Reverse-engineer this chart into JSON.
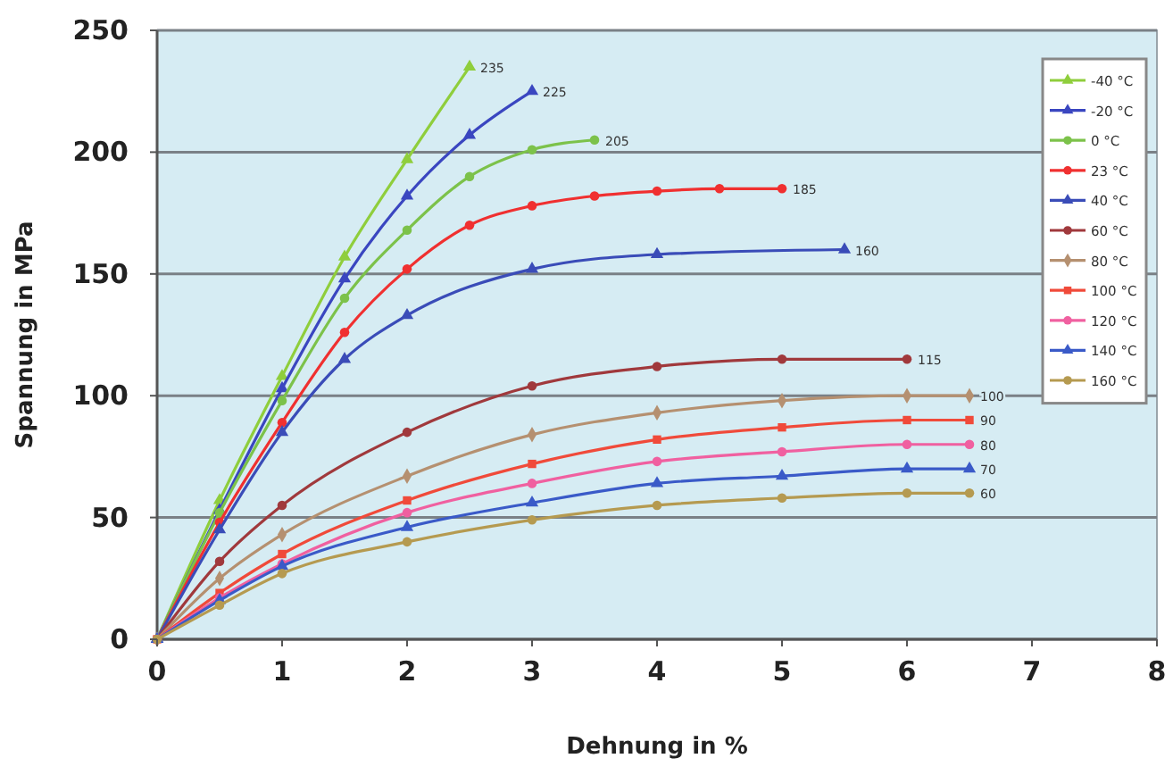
{
  "chart_data": {
    "type": "line",
    "xlabel": "Dehnung in %",
    "ylabel": "Spannung in MPa",
    "xlim": [
      0,
      8
    ],
    "ylim": [
      0,
      250
    ],
    "xticks": [
      0,
      1,
      2,
      3,
      4,
      5,
      6,
      7,
      8
    ],
    "yticks": [
      0,
      50,
      100,
      150,
      200,
      250
    ],
    "grid": "y",
    "legend": "top right",
    "marker": "circle",
    "line_style": "solid",
    "series": [
      {
        "name": "-40 °C",
        "color": "#8fce3c",
        "marker": "triangle",
        "x": [
          0,
          0.5,
          1,
          1.5,
          2,
          2.5
        ],
        "values": [
          0,
          57,
          108,
          157,
          197,
          235
        ]
      },
      {
        "name": "-20 °C",
        "color": "#3a46c0",
        "marker": "triangle",
        "x": [
          0,
          0.5,
          1,
          1.5,
          2,
          2.5,
          3
        ],
        "values": [
          0,
          53,
          103,
          148,
          182,
          207,
          225
        ]
      },
      {
        "name": "0 °C",
        "color": "#7cc24a",
        "x": [
          0,
          0.5,
          1,
          1.5,
          2,
          2.5,
          3,
          3.5
        ],
        "values": [
          0,
          52,
          98,
          140,
          168,
          190,
          201,
          205
        ]
      },
      {
        "name": "23 °C",
        "color": "#f03030",
        "x": [
          0,
          0.5,
          1,
          1.5,
          2,
          2.5,
          3,
          3.5,
          4,
          4.5,
          5
        ],
        "values": [
          0,
          48,
          89,
          126,
          152,
          170,
          178,
          182,
          184,
          185,
          185
        ]
      },
      {
        "name": "40 °C",
        "color": "#3a4cb8",
        "marker": "triangle",
        "x": [
          0,
          0.5,
          1,
          1.5,
          2,
          3,
          4,
          5.5
        ],
        "values": [
          0,
          45,
          85,
          115,
          133,
          152,
          158,
          160
        ]
      },
      {
        "name": "60 °C",
        "color": "#a0393c",
        "x": [
          0,
          0.5,
          1,
          2,
          3,
          4,
          5,
          6
        ],
        "values": [
          0,
          32,
          55,
          85,
          104,
          112,
          115,
          115
        ]
      },
      {
        "name": "80 °C",
        "color": "#b59070",
        "marker": "diamond",
        "x": [
          0,
          0.5,
          1,
          2,
          3,
          4,
          5,
          6,
          6.5
        ],
        "values": [
          0,
          25,
          43,
          67,
          84,
          93,
          98,
          100,
          100
        ]
      },
      {
        "name": "100 °C",
        "color": "#f04a3a",
        "marker": "square",
        "x": [
          0,
          0.5,
          1,
          2,
          3,
          4,
          5,
          6,
          6.5
        ],
        "values": [
          0,
          19,
          35,
          57,
          72,
          82,
          87,
          90,
          90
        ]
      },
      {
        "name": "120 °C",
        "color": "#f060a0",
        "x": [
          0,
          0.5,
          1,
          2,
          3,
          4,
          5,
          6,
          6.5
        ],
        "values": [
          0,
          17,
          31,
          52,
          64,
          73,
          77,
          80,
          80
        ]
      },
      {
        "name": "140 °C",
        "color": "#3a5ac8",
        "marker": "triangle",
        "x": [
          0,
          0.5,
          1,
          2,
          3,
          4,
          5,
          6,
          6.5
        ],
        "values": [
          0,
          16,
          30,
          46,
          56,
          64,
          67,
          70,
          70
        ]
      },
      {
        "name": "160 °C",
        "color": "#b59a50",
        "x": [
          0,
          0.5,
          1,
          2,
          3,
          4,
          5,
          6,
          6.5
        ],
        "values": [
          0,
          14,
          27,
          40,
          49,
          55,
          58,
          60,
          60
        ]
      }
    ],
    "annotations": [
      {
        "text": "235",
        "x": 2.5,
        "y": 235
      },
      {
        "text": "225",
        "x": 3,
        "y": 225
      },
      {
        "text": "205",
        "x": 3.5,
        "y": 205
      },
      {
        "text": "185",
        "x": 5,
        "y": 185
      },
      {
        "text": "160",
        "x": 5.5,
        "y": 160
      },
      {
        "text": "115",
        "x": 6,
        "y": 115
      },
      {
        "text": "100",
        "x": 6.5,
        "y": 100
      },
      {
        "text": "90",
        "x": 6.5,
        "y": 90
      },
      {
        "text": "80",
        "x": 6.5,
        "y": 80
      },
      {
        "text": "70",
        "x": 6.5,
        "y": 70
      },
      {
        "text": "60",
        "x": 6.5,
        "y": 60
      }
    ]
  }
}
